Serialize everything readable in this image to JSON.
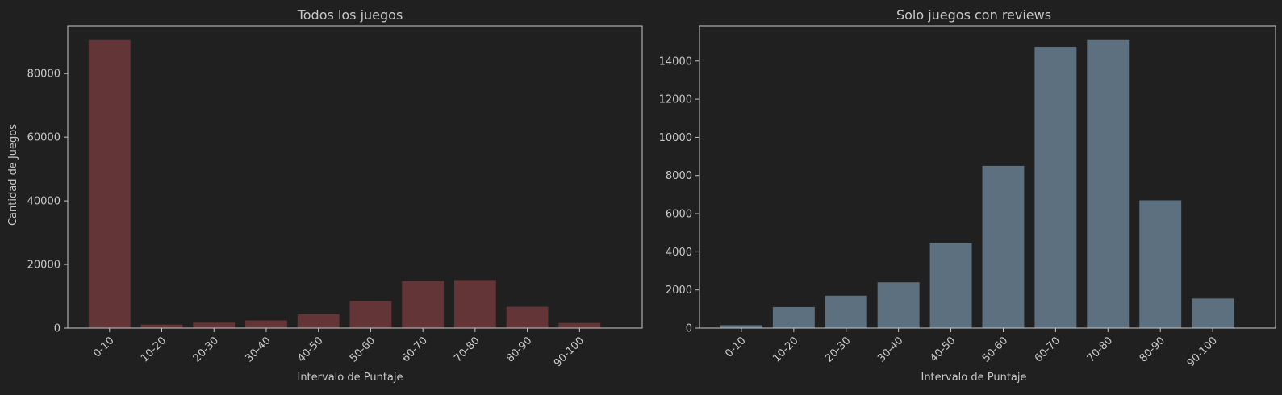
{
  "colors": {
    "background": "#202020",
    "axis": "#c8c8c8",
    "text": "#c8c8c8",
    "bars_left": "#643536",
    "bars_right": "#5c7080"
  },
  "chart_data": [
    {
      "type": "bar",
      "title": "Todos los juegos",
      "xlabel": "Intervalo de Puntaje",
      "ylabel": "Cantidad de Juegos",
      "categories": [
        "0-10",
        "10-20",
        "20-30",
        "30-40",
        "40-50",
        "50-60",
        "60-70",
        "70-80",
        "80-90",
        "90-100"
      ],
      "values": [
        90500,
        1100,
        1700,
        2400,
        4400,
        8500,
        14800,
        15100,
        6700,
        1600
      ],
      "ylim": [
        0,
        95000
      ],
      "yticks": [
        0,
        20000,
        40000,
        60000,
        80000
      ],
      "grid": false,
      "color": "#643536"
    },
    {
      "type": "bar",
      "title": "Solo juegos con reviews",
      "xlabel": "Intervalo de Puntaje",
      "ylabel": "",
      "categories": [
        "0-10",
        "10-20",
        "20-30",
        "30-40",
        "40-50",
        "50-60",
        "60-70",
        "70-80",
        "80-90",
        "90-100"
      ],
      "values": [
        150,
        1100,
        1700,
        2400,
        4450,
        8500,
        14750,
        15100,
        6700,
        1550
      ],
      "ylim": [
        0,
        15850
      ],
      "yticks": [
        0,
        2000,
        4000,
        6000,
        8000,
        10000,
        12000,
        14000
      ],
      "grid": false,
      "color": "#5c7080"
    }
  ]
}
